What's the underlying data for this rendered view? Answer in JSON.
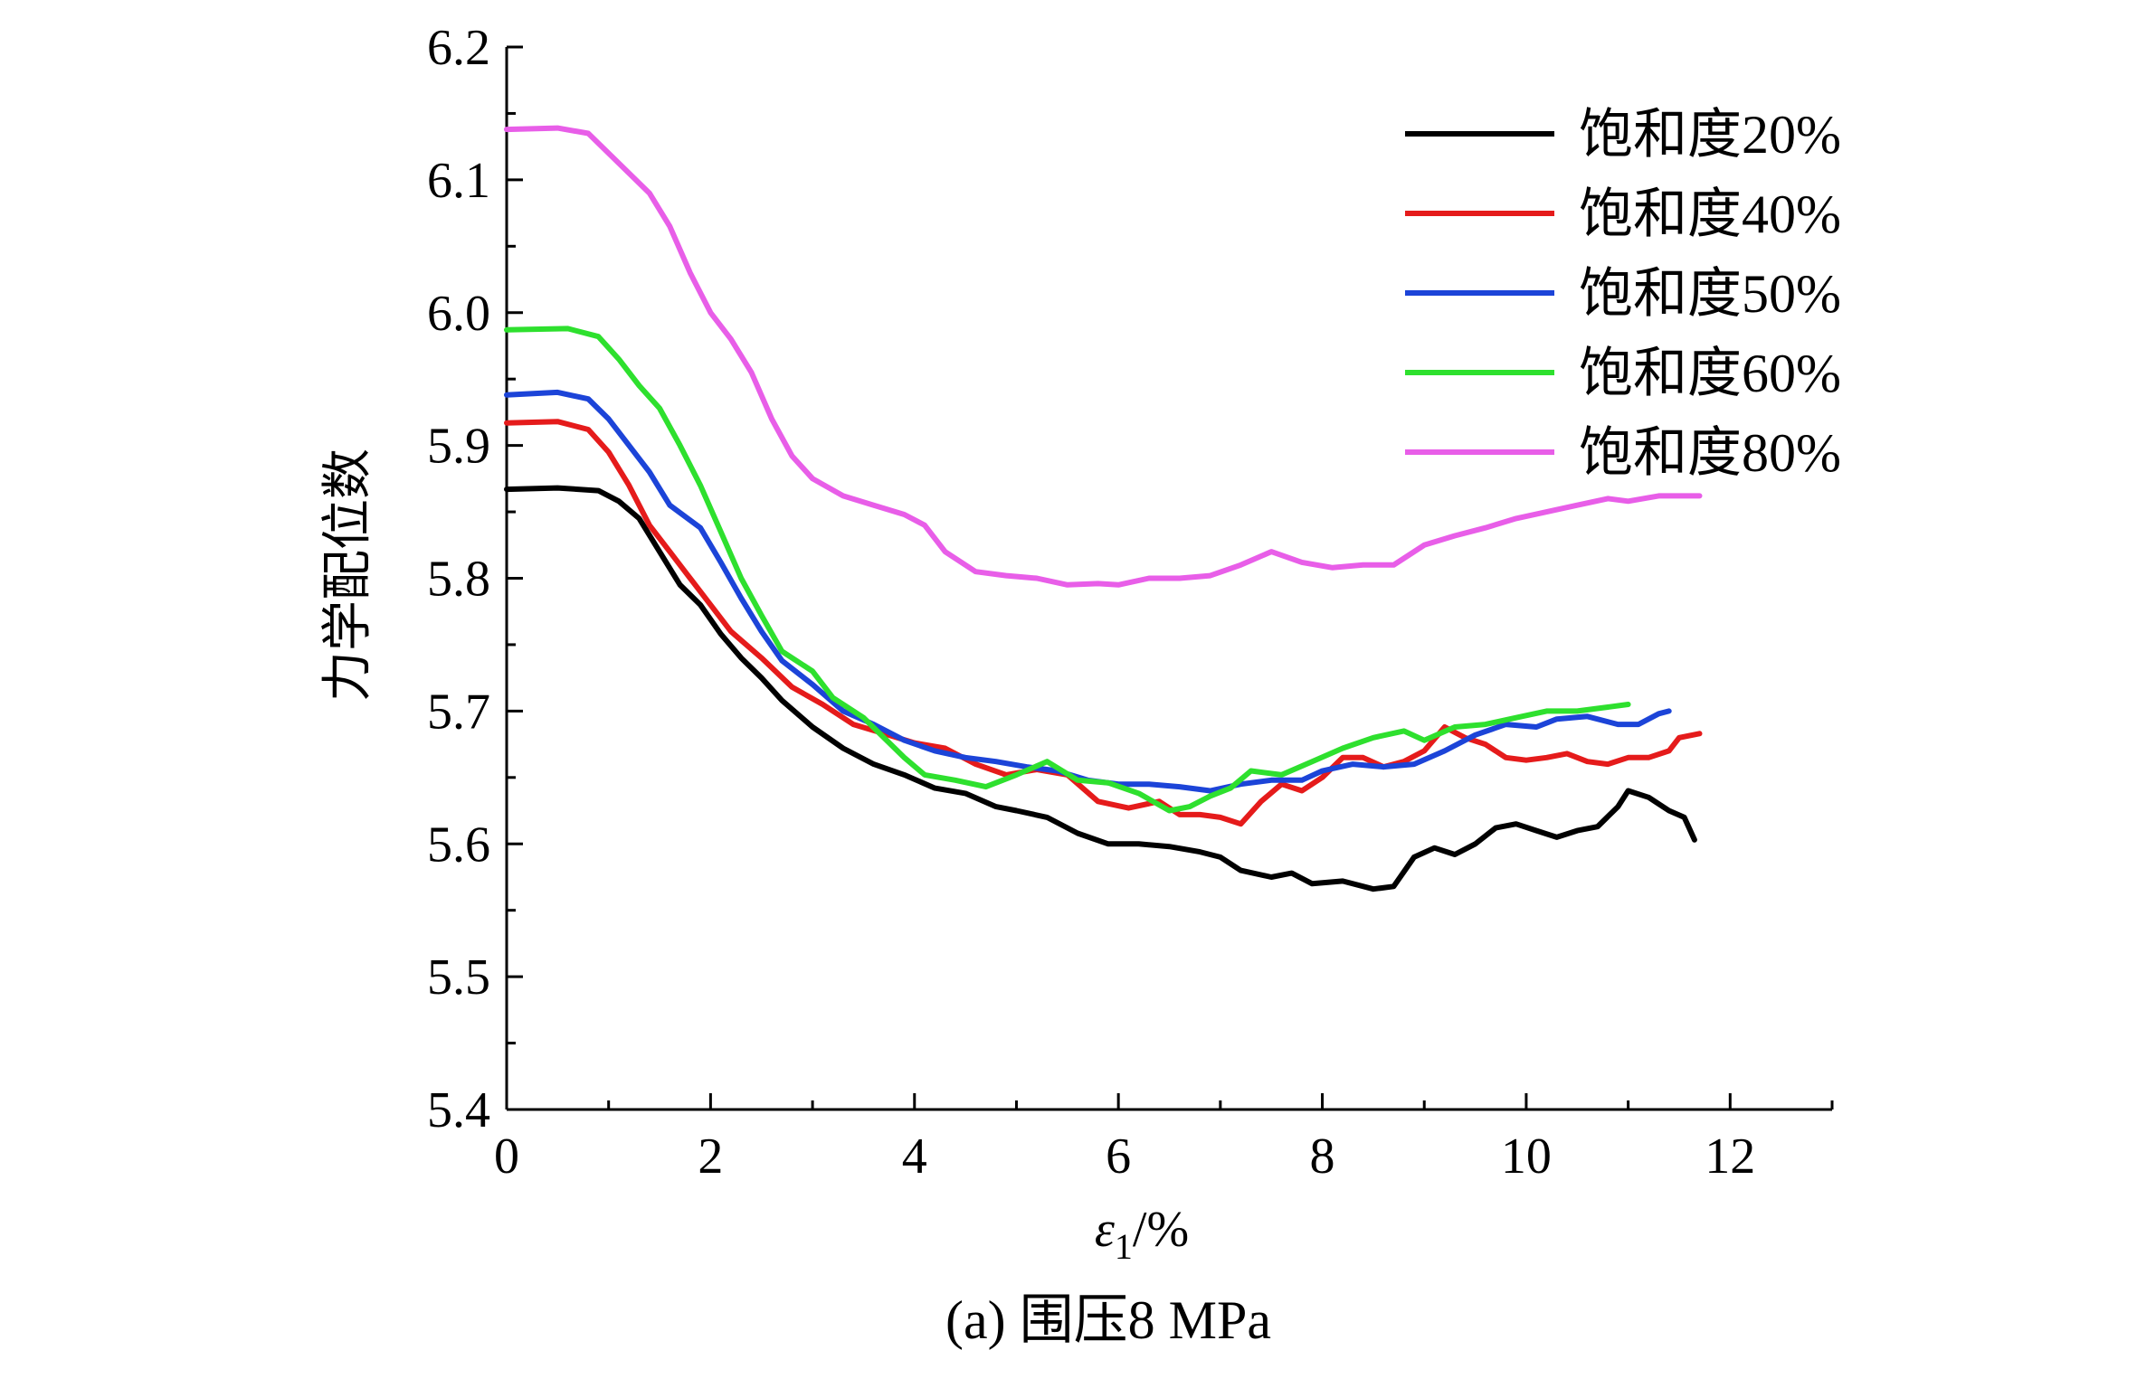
{
  "chart_data": {
    "type": "line",
    "title": "",
    "caption": "(a) 围压8 MPa",
    "xlabel": "ε1/%",
    "ylabel": "力学配位数",
    "xlim": [
      0,
      13
    ],
    "ylim": [
      5.4,
      6.2
    ],
    "x_ticks": [
      0,
      2,
      4,
      6,
      8,
      10,
      12
    ],
    "y_ticks": [
      "5.4",
      "5.5",
      "5.6",
      "5.7",
      "5.8",
      "5.9",
      "6.0",
      "6.1",
      "6.2"
    ],
    "grid": false,
    "legend_position": "top-right",
    "series": [
      {
        "name": "饱和度20%",
        "color": "#000000",
        "points": [
          [
            0,
            5.867
          ],
          [
            0.5,
            5.868
          ],
          [
            0.9,
            5.866
          ],
          [
            1.1,
            5.858
          ],
          [
            1.3,
            5.845
          ],
          [
            1.5,
            5.82
          ],
          [
            1.7,
            5.795
          ],
          [
            1.9,
            5.78
          ],
          [
            2.1,
            5.758
          ],
          [
            2.3,
            5.74
          ],
          [
            2.5,
            5.725
          ],
          [
            2.7,
            5.708
          ],
          [
            3.0,
            5.688
          ],
          [
            3.3,
            5.672
          ],
          [
            3.6,
            5.66
          ],
          [
            3.9,
            5.652
          ],
          [
            4.2,
            5.642
          ],
          [
            4.5,
            5.638
          ],
          [
            4.8,
            5.628
          ],
          [
            5.0,
            5.625
          ],
          [
            5.3,
            5.62
          ],
          [
            5.6,
            5.608
          ],
          [
            5.9,
            5.6
          ],
          [
            6.2,
            5.6
          ],
          [
            6.5,
            5.598
          ],
          [
            6.8,
            5.594
          ],
          [
            7.0,
            5.59
          ],
          [
            7.2,
            5.58
          ],
          [
            7.5,
            5.575
          ],
          [
            7.7,
            5.578
          ],
          [
            7.9,
            5.57
          ],
          [
            8.2,
            5.572
          ],
          [
            8.5,
            5.566
          ],
          [
            8.7,
            5.568
          ],
          [
            8.9,
            5.59
          ],
          [
            9.1,
            5.597
          ],
          [
            9.3,
            5.592
          ],
          [
            9.5,
            5.6
          ],
          [
            9.7,
            5.612
          ],
          [
            9.9,
            5.615
          ],
          [
            10.1,
            5.61
          ],
          [
            10.3,
            5.605
          ],
          [
            10.5,
            5.61
          ],
          [
            10.7,
            5.613
          ],
          [
            10.9,
            5.628
          ],
          [
            11.0,
            5.64
          ],
          [
            11.2,
            5.635
          ],
          [
            11.4,
            5.625
          ],
          [
            11.55,
            5.62
          ],
          [
            11.65,
            5.603
          ]
        ]
      },
      {
        "name": "饱和度40%",
        "color": "#e51b1b",
        "points": [
          [
            0,
            5.917
          ],
          [
            0.5,
            5.918
          ],
          [
            0.8,
            5.912
          ],
          [
            1.0,
            5.895
          ],
          [
            1.2,
            5.87
          ],
          [
            1.4,
            5.84
          ],
          [
            1.6,
            5.82
          ],
          [
            1.8,
            5.8
          ],
          [
            2.0,
            5.78
          ],
          [
            2.2,
            5.76
          ],
          [
            2.5,
            5.74
          ],
          [
            2.8,
            5.718
          ],
          [
            3.1,
            5.705
          ],
          [
            3.4,
            5.69
          ],
          [
            3.7,
            5.683
          ],
          [
            4.0,
            5.676
          ],
          [
            4.3,
            5.672
          ],
          [
            4.6,
            5.66
          ],
          [
            4.9,
            5.652
          ],
          [
            5.2,
            5.656
          ],
          [
            5.5,
            5.652
          ],
          [
            5.8,
            5.632
          ],
          [
            6.1,
            5.627
          ],
          [
            6.4,
            5.632
          ],
          [
            6.6,
            5.622
          ],
          [
            6.8,
            5.622
          ],
          [
            7.0,
            5.62
          ],
          [
            7.2,
            5.615
          ],
          [
            7.4,
            5.632
          ],
          [
            7.6,
            5.645
          ],
          [
            7.8,
            5.64
          ],
          [
            8.0,
            5.65
          ],
          [
            8.2,
            5.665
          ],
          [
            8.4,
            5.665
          ],
          [
            8.6,
            5.658
          ],
          [
            8.8,
            5.662
          ],
          [
            9.0,
            5.67
          ],
          [
            9.2,
            5.688
          ],
          [
            9.4,
            5.68
          ],
          [
            9.6,
            5.675
          ],
          [
            9.8,
            5.665
          ],
          [
            10.0,
            5.663
          ],
          [
            10.2,
            5.665
          ],
          [
            10.4,
            5.668
          ],
          [
            10.6,
            5.662
          ],
          [
            10.8,
            5.66
          ],
          [
            11.0,
            5.665
          ],
          [
            11.2,
            5.665
          ],
          [
            11.4,
            5.67
          ],
          [
            11.5,
            5.68
          ],
          [
            11.7,
            5.683
          ]
        ]
      },
      {
        "name": "饱和度50%",
        "color": "#1c44d8",
        "points": [
          [
            0,
            5.938
          ],
          [
            0.5,
            5.94
          ],
          [
            0.8,
            5.935
          ],
          [
            1.0,
            5.92
          ],
          [
            1.2,
            5.9
          ],
          [
            1.4,
            5.88
          ],
          [
            1.6,
            5.855
          ],
          [
            1.9,
            5.838
          ],
          [
            2.1,
            5.812
          ],
          [
            2.3,
            5.785
          ],
          [
            2.5,
            5.76
          ],
          [
            2.7,
            5.738
          ],
          [
            3.0,
            5.72
          ],
          [
            3.3,
            5.7
          ],
          [
            3.6,
            5.69
          ],
          [
            3.9,
            5.678
          ],
          [
            4.2,
            5.67
          ],
          [
            4.5,
            5.665
          ],
          [
            4.8,
            5.662
          ],
          [
            5.1,
            5.658
          ],
          [
            5.4,
            5.655
          ],
          [
            5.7,
            5.648
          ],
          [
            6.0,
            5.645
          ],
          [
            6.3,
            5.645
          ],
          [
            6.6,
            5.643
          ],
          [
            6.9,
            5.64
          ],
          [
            7.2,
            5.645
          ],
          [
            7.5,
            5.648
          ],
          [
            7.8,
            5.648
          ],
          [
            8.0,
            5.655
          ],
          [
            8.3,
            5.66
          ],
          [
            8.6,
            5.658
          ],
          [
            8.9,
            5.66
          ],
          [
            9.2,
            5.67
          ],
          [
            9.5,
            5.682
          ],
          [
            9.8,
            5.69
          ],
          [
            10.1,
            5.688
          ],
          [
            10.3,
            5.694
          ],
          [
            10.6,
            5.696
          ],
          [
            10.9,
            5.69
          ],
          [
            11.1,
            5.69
          ],
          [
            11.3,
            5.698
          ],
          [
            11.4,
            5.7
          ]
        ]
      },
      {
        "name": "饱和度60%",
        "color": "#2ee02e",
        "points": [
          [
            0,
            5.987
          ],
          [
            0.6,
            5.988
          ],
          [
            0.9,
            5.982
          ],
          [
            1.1,
            5.965
          ],
          [
            1.3,
            5.945
          ],
          [
            1.5,
            5.928
          ],
          [
            1.7,
            5.9
          ],
          [
            1.9,
            5.87
          ],
          [
            2.1,
            5.835
          ],
          [
            2.3,
            5.8
          ],
          [
            2.5,
            5.772
          ],
          [
            2.7,
            5.745
          ],
          [
            3.0,
            5.73
          ],
          [
            3.2,
            5.71
          ],
          [
            3.5,
            5.695
          ],
          [
            3.7,
            5.68
          ],
          [
            3.9,
            5.665
          ],
          [
            4.1,
            5.652
          ],
          [
            4.4,
            5.648
          ],
          [
            4.7,
            5.643
          ],
          [
            5.0,
            5.652
          ],
          [
            5.3,
            5.662
          ],
          [
            5.6,
            5.648
          ],
          [
            5.9,
            5.646
          ],
          [
            6.2,
            5.638
          ],
          [
            6.5,
            5.625
          ],
          [
            6.7,
            5.628
          ],
          [
            6.9,
            5.636
          ],
          [
            7.1,
            5.642
          ],
          [
            7.3,
            5.655
          ],
          [
            7.6,
            5.652
          ],
          [
            7.9,
            5.662
          ],
          [
            8.2,
            5.672
          ],
          [
            8.5,
            5.68
          ],
          [
            8.8,
            5.685
          ],
          [
            9.0,
            5.678
          ],
          [
            9.3,
            5.688
          ],
          [
            9.6,
            5.69
          ],
          [
            9.9,
            5.695
          ],
          [
            10.2,
            5.7
          ],
          [
            10.5,
            5.7
          ],
          [
            10.8,
            5.703
          ],
          [
            11.0,
            5.705
          ]
        ]
      },
      {
        "name": "饱和度80%",
        "color": "#e85ee8",
        "points": [
          [
            0,
            6.138
          ],
          [
            0.5,
            6.139
          ],
          [
            0.8,
            6.135
          ],
          [
            1.0,
            6.12
          ],
          [
            1.2,
            6.105
          ],
          [
            1.4,
            6.09
          ],
          [
            1.6,
            6.065
          ],
          [
            1.8,
            6.03
          ],
          [
            2.0,
            6.0
          ],
          [
            2.2,
            5.98
          ],
          [
            2.4,
            5.955
          ],
          [
            2.6,
            5.92
          ],
          [
            2.8,
            5.892
          ],
          [
            3.0,
            5.875
          ],
          [
            3.3,
            5.862
          ],
          [
            3.6,
            5.855
          ],
          [
            3.9,
            5.848
          ],
          [
            4.1,
            5.84
          ],
          [
            4.3,
            5.82
          ],
          [
            4.6,
            5.805
          ],
          [
            4.9,
            5.802
          ],
          [
            5.2,
            5.8
          ],
          [
            5.5,
            5.795
          ],
          [
            5.8,
            5.796
          ],
          [
            6.0,
            5.795
          ],
          [
            6.3,
            5.8
          ],
          [
            6.6,
            5.8
          ],
          [
            6.9,
            5.802
          ],
          [
            7.2,
            5.81
          ],
          [
            7.5,
            5.82
          ],
          [
            7.8,
            5.812
          ],
          [
            8.1,
            5.808
          ],
          [
            8.4,
            5.81
          ],
          [
            8.7,
            5.81
          ],
          [
            9.0,
            5.825
          ],
          [
            9.3,
            5.832
          ],
          [
            9.6,
            5.838
          ],
          [
            9.9,
            5.845
          ],
          [
            10.2,
            5.85
          ],
          [
            10.5,
            5.855
          ],
          [
            10.8,
            5.86
          ],
          [
            11.0,
            5.858
          ],
          [
            11.3,
            5.862
          ],
          [
            11.5,
            5.862
          ],
          [
            11.7,
            5.862
          ]
        ]
      }
    ]
  }
}
